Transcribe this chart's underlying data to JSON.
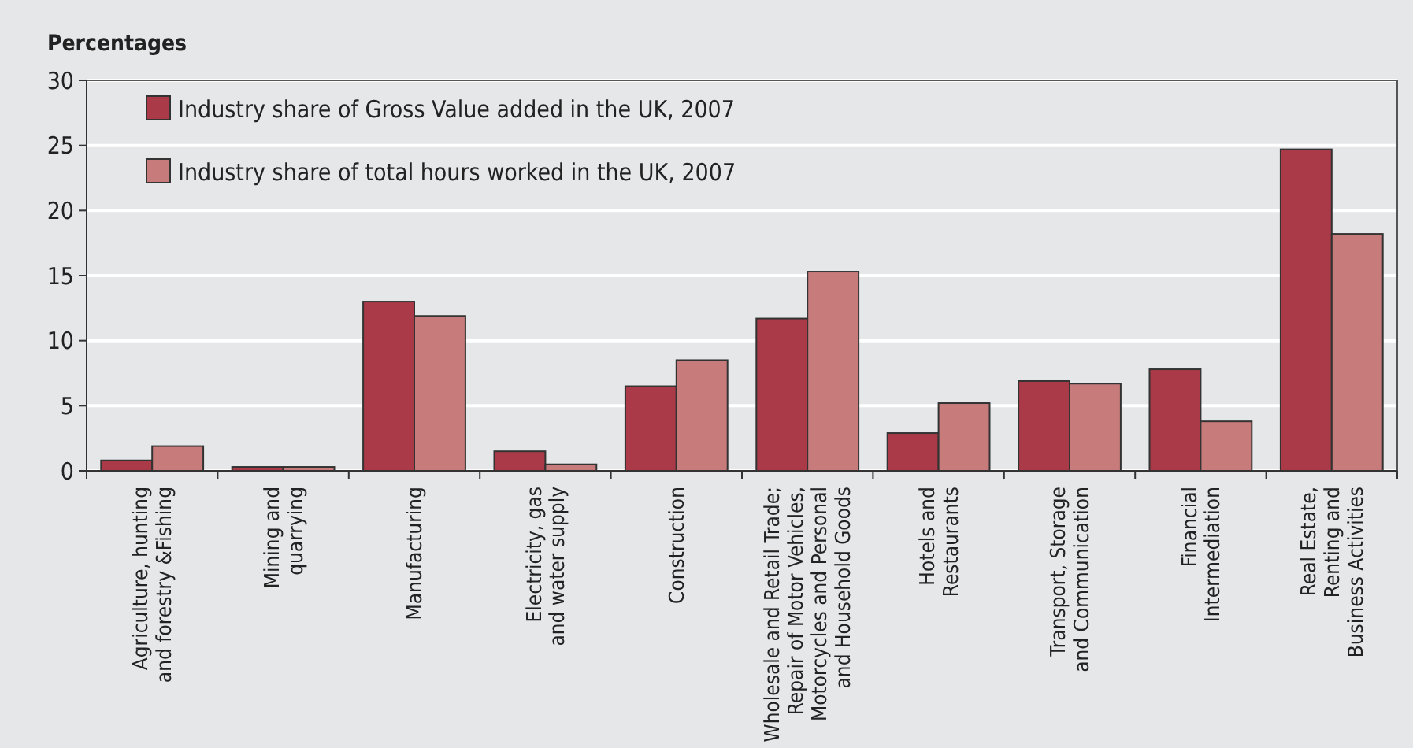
{
  "chart_data": {
    "type": "bar",
    "ylabel": "Percentages",
    "categories": [
      "Agriculture, hunting\nand forestry &Fishing",
      "Mining and\nquarrying",
      "Manufacturing",
      "Electricity, gas\nand water supply",
      "Construction",
      "Wholesale and Retail Trade;\nRepair of Motor Vehicles,\nMotorcycles and Personal\nand Household Goods",
      "Hotels and\nRestaurants",
      "Transport, Storage\nand Communication",
      "Financial\nIntermediation",
      "Real Estate,\nRenting and\nBusiness Activities"
    ],
    "series": [
      {
        "name": "Industry share of Gross Value added in the UK, 2007",
        "color": "#aa3a48",
        "values": [
          0.8,
          0.3,
          13.0,
          1.5,
          6.5,
          11.7,
          2.9,
          6.9,
          7.8,
          24.7
        ]
      },
      {
        "name": "Industry share of total hours worked in the UK, 2007",
        "color": "#c87b7b",
        "values": [
          1.9,
          0.3,
          11.9,
          0.5,
          8.5,
          15.3,
          5.2,
          6.7,
          3.8,
          18.2
        ]
      }
    ],
    "ylim": [
      0,
      30
    ],
    "yticks": [
      0,
      5,
      10,
      15,
      20,
      25,
      30
    ],
    "grid": "y",
    "legend": "top left"
  }
}
